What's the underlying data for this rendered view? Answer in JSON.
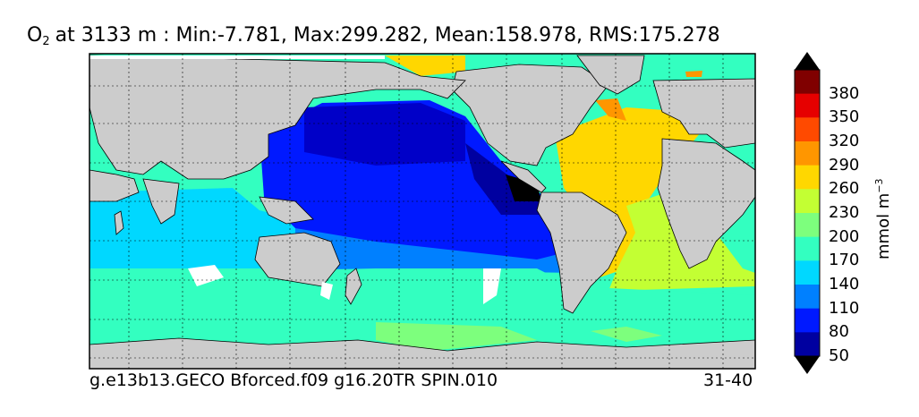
{
  "title": {
    "species": "O",
    "subscript": "2",
    "text": "at 3133 m : Min:-7.781, Max:299.282, Mean:158.978, RMS:175.278"
  },
  "footer": {
    "left": "g.e13b13.GECO Bforced.f09 g16.20TR SPIN.010",
    "right": "31-40"
  },
  "colorbar": {
    "units_prefix": "mmol m",
    "units_exponent": "−3",
    "labels": [
      "380",
      "350",
      "320",
      "290",
      "260",
      "230",
      "200",
      "170",
      "140",
      "110",
      "80",
      "50"
    ],
    "colors": [
      "#800000",
      "#e60000",
      "#ff4a00",
      "#ff9600",
      "#ffd700",
      "#c3ff33",
      "#7dff7d",
      "#33ffc0",
      "#00d8ff",
      "#0080ff",
      "#0019ff",
      "#0000a0"
    ],
    "under_color": "#000000",
    "over_color": "#000000"
  },
  "map": {
    "land_color": "#cccccc",
    "missing_color": "#ffffff",
    "projection": "cylindrical",
    "grid": true
  }
}
